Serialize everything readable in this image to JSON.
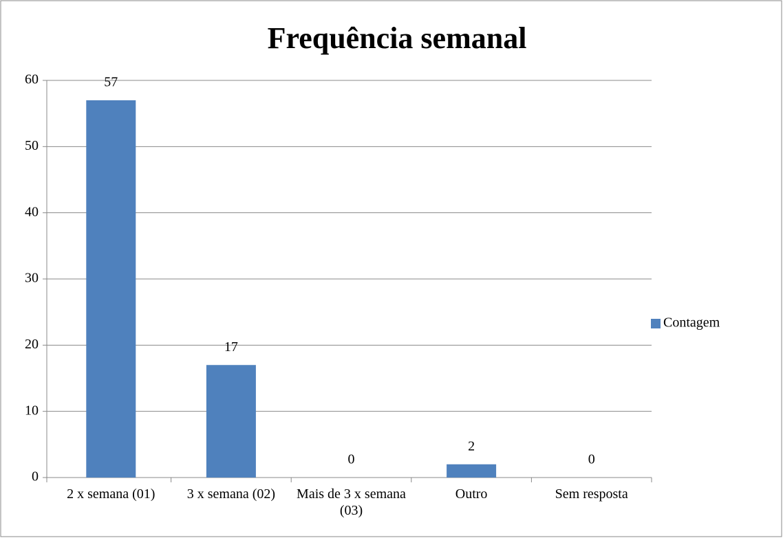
{
  "chart_data": {
    "type": "bar",
    "title": "Frequência semanal",
    "categories": [
      "2 x semana (01)",
      "3 x semana (02)",
      "Mais de 3 x semana (03)",
      "Outro",
      "Sem resposta"
    ],
    "series": [
      {
        "name": "Contagem",
        "color": "#4f81bd",
        "values": [
          57,
          17,
          0,
          2,
          0
        ]
      }
    ],
    "ylim": [
      0,
      60
    ],
    "yticks": [
      0,
      10,
      20,
      30,
      40,
      50,
      60
    ],
    "grid": true,
    "legend": "right"
  }
}
